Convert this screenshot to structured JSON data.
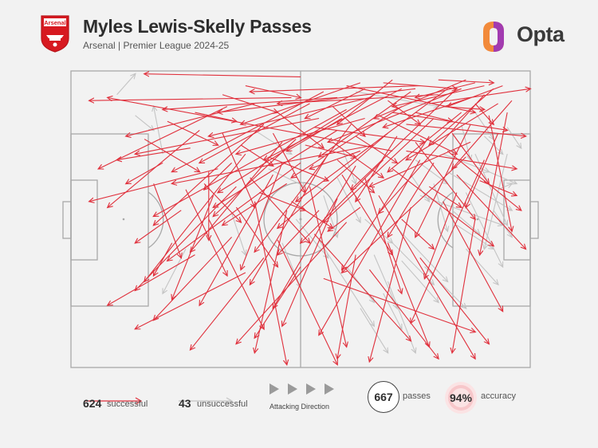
{
  "header": {
    "title": "Myles Lewis-Skelly Passes",
    "subtitle": "Arsenal | Premier League 2024-25",
    "crest_text": "Arsenal",
    "brand": "Opta"
  },
  "colors": {
    "successful": "#e0303c",
    "unsuccessful": "#c4c4c4",
    "pitch_line": "#a8a8a8",
    "crest": "#d71920",
    "opta_orange": "#f28a3b",
    "opta_purple": "#a23bb0"
  },
  "legend": {
    "successful_count": "624",
    "successful_label": "successful",
    "unsuccessful_count": "43",
    "unsuccessful_label": "unsuccessful",
    "direction_label": "Attacking Direction",
    "passes_count": "667",
    "passes_label": "passes",
    "accuracy_value": "94%",
    "accuracy_label": "accuracy"
  },
  "chart_data": {
    "type": "pass-map",
    "units": "pitch coordinates 0-100 (x = attacking direction, y = top to bottom)",
    "attacking_direction": "left-to-right",
    "totals": {
      "successful": 624,
      "unsuccessful": 43,
      "passes": 667,
      "accuracy_percent": 94
    },
    "successful_passes": [
      [
        70,
        27,
        8,
        9
      ],
      [
        50,
        2,
        16,
        1
      ],
      [
        75,
        6,
        32,
        14
      ],
      [
        88,
        4,
        75,
        9
      ],
      [
        85,
        6,
        56,
        24
      ],
      [
        72,
        6,
        42,
        30
      ],
      [
        90,
        5,
        70,
        12
      ],
      [
        65,
        9,
        30,
        22
      ],
      [
        80,
        8,
        45,
        11
      ],
      [
        60,
        5,
        88,
        14
      ],
      [
        55,
        7,
        22,
        34
      ],
      [
        70,
        14,
        95,
        20
      ],
      [
        68,
        4,
        84,
        6
      ],
      [
        84,
        6,
        61,
        40
      ],
      [
        74,
        7,
        54,
        29
      ],
      [
        92,
        6,
        78,
        25
      ],
      [
        58,
        9,
        20,
        13
      ],
      [
        86,
        3,
        66,
        16
      ],
      [
        78,
        11,
        100,
        6
      ],
      [
        63,
        4,
        37,
        18
      ],
      [
        82,
        6,
        49,
        44
      ],
      [
        66,
        8,
        32,
        41
      ],
      [
        90,
        8,
        67,
        48
      ],
      [
        72,
        12,
        48,
        36
      ],
      [
        60,
        13,
        18,
        49
      ],
      [
        88,
        11,
        92,
        18
      ],
      [
        76,
        5,
        39,
        7
      ],
      [
        52,
        11,
        28,
        31
      ],
      [
        94,
        5,
        82,
        12
      ],
      [
        70,
        3,
        58,
        18
      ],
      [
        80,
        3,
        92,
        4
      ],
      [
        64,
        16,
        36,
        28
      ],
      [
        85,
        14,
        69,
        34
      ],
      [
        54,
        16,
        14,
        28
      ],
      [
        73,
        18,
        99,
        22
      ],
      [
        87,
        18,
        75,
        56
      ],
      [
        69,
        21,
        45,
        53
      ],
      [
        58,
        20,
        31,
        46
      ],
      [
        78,
        22,
        59,
        67
      ],
      [
        91,
        15,
        96,
        54
      ],
      [
        66,
        25,
        22,
        38
      ],
      [
        82,
        27,
        98,
        47
      ],
      [
        48,
        9,
        4,
        10
      ],
      [
        40,
        11,
        12,
        22
      ],
      [
        34,
        12,
        6,
        33
      ],
      [
        42,
        18,
        18,
        52
      ],
      [
        28,
        20,
        8,
        46
      ],
      [
        46,
        24,
        26,
        61
      ],
      [
        38,
        28,
        16,
        71
      ],
      [
        50,
        31,
        21,
        64
      ],
      [
        32,
        33,
        4,
        44
      ],
      [
        56,
        28,
        39,
        72
      ],
      [
        62,
        32,
        44,
        80
      ],
      [
        44,
        35,
        28,
        79
      ],
      [
        36,
        39,
        14,
        74
      ],
      [
        52,
        39,
        60,
        93
      ],
      [
        64,
        36,
        72,
        75
      ],
      [
        70,
        33,
        92,
        59
      ],
      [
        76,
        30,
        54,
        89
      ],
      [
        84,
        35,
        99,
        60
      ],
      [
        90,
        30,
        74,
        85
      ],
      [
        58,
        43,
        46,
        86
      ],
      [
        47,
        47,
        40,
        95
      ],
      [
        67,
        42,
        88,
        97
      ],
      [
        74,
        46,
        65,
        98
      ],
      [
        40,
        44,
        47,
        99
      ],
      [
        81,
        44,
        94,
        81
      ],
      [
        30,
        50,
        42,
        87
      ],
      [
        60,
        51,
        36,
        92
      ],
      [
        88,
        50,
        83,
        95
      ],
      [
        53,
        55,
        74,
        91
      ],
      [
        45,
        57,
        58,
        99
      ],
      [
        69,
        58,
        78,
        93
      ],
      [
        35,
        56,
        18,
        84
      ],
      [
        62,
        62,
        58,
        97
      ],
      [
        42,
        63,
        26,
        94
      ],
      [
        76,
        63,
        91,
        92
      ],
      [
        27,
        62,
        8,
        79
      ],
      [
        50,
        66,
        40,
        90
      ],
      [
        65,
        67,
        80,
        97
      ],
      [
        38,
        68,
        14,
        87
      ],
      [
        55,
        70,
        88,
        88
      ],
      [
        22,
        58,
        18,
        69
      ],
      [
        30,
        34,
        30,
        57
      ],
      [
        26,
        26,
        10,
        30
      ],
      [
        33,
        21,
        40,
        46
      ],
      [
        44,
        21,
        51,
        41
      ],
      [
        49,
        23,
        31,
        49
      ],
      [
        57,
        24,
        68,
        36
      ],
      [
        61,
        18,
        40,
        61
      ],
      [
        67,
        15,
        84,
        28
      ],
      [
        71,
        22,
        62,
        44
      ],
      [
        79,
        16,
        55,
        51
      ],
      [
        83,
        21,
        91,
        38
      ],
      [
        87,
        24,
        65,
        39
      ],
      [
        93,
        21,
        86,
        46
      ],
      [
        96,
        10,
        83,
        33
      ],
      [
        75,
        24,
        88,
        50
      ],
      [
        68,
        30,
        50,
        58
      ],
      [
        59,
        35,
        70,
        62
      ],
      [
        47,
        38,
        33,
        52
      ],
      [
        39,
        36,
        52,
        58
      ],
      [
        31,
        42,
        22,
        77
      ],
      [
        24,
        47,
        14,
        58
      ],
      [
        20,
        31,
        12,
        38
      ],
      [
        37,
        25,
        44,
        32
      ],
      [
        45,
        14,
        55,
        26
      ],
      [
        53,
        19,
        77,
        24
      ],
      [
        62,
        22,
        71,
        31
      ],
      [
        73,
        27,
        97,
        33
      ],
      [
        79,
        31,
        69,
        56
      ],
      [
        86,
        29,
        59,
        68
      ],
      [
        57,
        12,
        64,
        22
      ],
      [
        69,
        10,
        76,
        18
      ],
      [
        75,
        14,
        83,
        17
      ],
      [
        81,
        12,
        90,
        13
      ],
      [
        87,
        9,
        68,
        19
      ],
      [
        93,
        11,
        73,
        30
      ],
      [
        64,
        6,
        51,
        16
      ],
      [
        59,
        16,
        47,
        27
      ],
      [
        51,
        25,
        62,
        29
      ],
      [
        43,
        29,
        56,
        37
      ],
      [
        35,
        31,
        29,
        40
      ],
      [
        29,
        38,
        37,
        51
      ],
      [
        41,
        41,
        51,
        47
      ],
      [
        48,
        44,
        57,
        53
      ],
      [
        54,
        47,
        45,
        62
      ],
      [
        63,
        46,
        56,
        54
      ],
      [
        72,
        50,
        79,
        60
      ],
      [
        78,
        39,
        85,
        46
      ],
      [
        84,
        41,
        77,
        70
      ],
      [
        89,
        37,
        97,
        42
      ],
      [
        95,
        14,
        89,
        62
      ],
      [
        63,
        27,
        52,
        33
      ],
      [
        58,
        30,
        66,
        41
      ],
      [
        46,
        31,
        37,
        67
      ],
      [
        36,
        46,
        45,
        66
      ],
      [
        25,
        40,
        34,
        69
      ],
      [
        18,
        38,
        24,
        63
      ],
      [
        16,
        23,
        28,
        34
      ],
      [
        21,
        17,
        32,
        25
      ],
      [
        27,
        14,
        36,
        17
      ],
      [
        33,
        8,
        45,
        14
      ],
      [
        38,
        5,
        50,
        9
      ]
    ],
    "unsuccessful_passes": [
      [
        10,
        8,
        14,
        1
      ],
      [
        14,
        15,
        18,
        20
      ],
      [
        25,
        60,
        20,
        75
      ],
      [
        40,
        20,
        48,
        28
      ],
      [
        62,
        7,
        80,
        12
      ],
      [
        88,
        28,
        95,
        52
      ],
      [
        95,
        28,
        90,
        60
      ],
      [
        82,
        34,
        96,
        47
      ],
      [
        69,
        71,
        75,
        95
      ],
      [
        86,
        41,
        94,
        66
      ],
      [
        93,
        40,
        96,
        38
      ],
      [
        86,
        60,
        93,
        72
      ],
      [
        70,
        58,
        79,
        72
      ],
      [
        84,
        52,
        92,
        60
      ],
      [
        76,
        42,
        94,
        52
      ],
      [
        79,
        38,
        82,
        54
      ],
      [
        54,
        57,
        66,
        86
      ],
      [
        63,
        80,
        69,
        95
      ],
      [
        20,
        28,
        18,
        12
      ],
      [
        43,
        33,
        51,
        39
      ],
      [
        58,
        36,
        63,
        51
      ],
      [
        75,
        30,
        82,
        38
      ],
      [
        90,
        22,
        94,
        28
      ],
      [
        95,
        19,
        98,
        26
      ],
      [
        71,
        53,
        82,
        71
      ],
      [
        66,
        62,
        71,
        80
      ],
      [
        81,
        28,
        91,
        34
      ],
      [
        59,
        26,
        62,
        38
      ],
      [
        49,
        50,
        56,
        63
      ],
      [
        64,
        50,
        70,
        58
      ],
      [
        85,
        18,
        87,
        30
      ],
      [
        88,
        14,
        92,
        23
      ],
      [
        91,
        34,
        97,
        38
      ],
      [
        72,
        64,
        80,
        78
      ],
      [
        55,
        42,
        58,
        56
      ],
      [
        46,
        58,
        50,
        73
      ],
      [
        35,
        48,
        38,
        62
      ],
      [
        60,
        66,
        66,
        78
      ],
      [
        68,
        75,
        72,
        87
      ],
      [
        77,
        66,
        86,
        80
      ],
      [
        83,
        47,
        89,
        55
      ],
      [
        74,
        35,
        78,
        44
      ],
      [
        92,
        47,
        96,
        56
      ]
    ]
  }
}
